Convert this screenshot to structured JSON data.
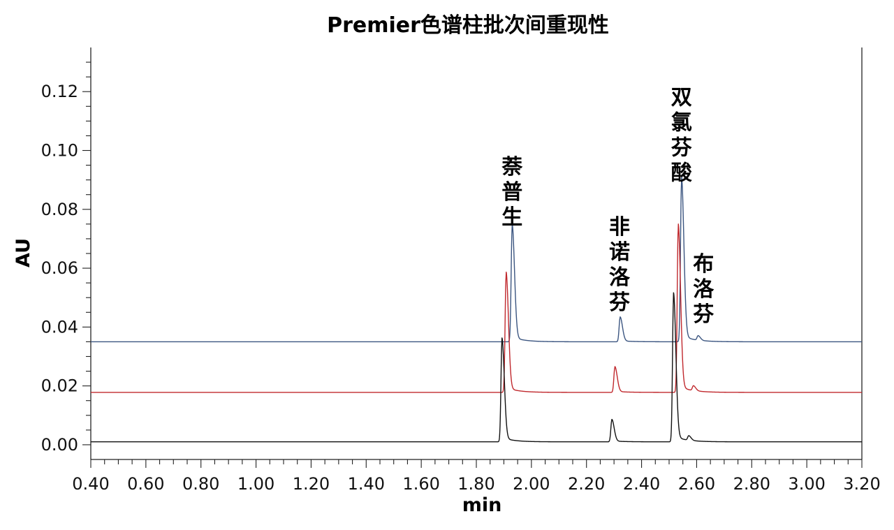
{
  "chart_data": {
    "type": "line",
    "title": "Premier色谱柱批次间重现性",
    "xlabel": "min",
    "ylabel": "AU",
    "xlim": [
      0.4,
      3.2
    ],
    "ylim": [
      -0.005,
      0.135
    ],
    "x_ticks": [
      "0.40",
      "0.60",
      "0.80",
      "1.00",
      "1.20",
      "1.40",
      "1.60",
      "1.80",
      "2.00",
      "2.20",
      "2.40",
      "2.60",
      "2.80",
      "3.00",
      "3.20"
    ],
    "y_ticks": [
      "0.00",
      "0.02",
      "0.04",
      "0.06",
      "0.08",
      "0.10",
      "0.12"
    ],
    "grid": false,
    "legend": "none",
    "peak_labels": [
      {
        "text": "萘普生",
        "x": 1.93,
        "y": 0.075
      },
      {
        "text": "非诺洛芬",
        "x": 2.32,
        "y": 0.046
      },
      {
        "text": "双氯芬酸",
        "x": 2.545,
        "y": 0.09
      },
      {
        "text": "布洛芬",
        "x": 2.625,
        "y": 0.042
      }
    ],
    "series": [
      {
        "color": "#3b5580",
        "baseline": 0.035,
        "peaks": [
          {
            "x": 1.93,
            "height": 0.0383
          },
          {
            "x": 2.322,
            "height": 0.0081
          },
          {
            "x": 2.545,
            "height": 0.0536
          },
          {
            "x": 2.605,
            "height": 0.0015
          }
        ]
      },
      {
        "color": "#c0282d",
        "baseline": 0.0178,
        "peaks": [
          {
            "x": 1.908,
            "height": 0.0392
          },
          {
            "x": 2.303,
            "height": 0.0084
          },
          {
            "x": 2.533,
            "height": 0.0549
          },
          {
            "x": 2.588,
            "height": 0.0016
          }
        ]
      },
      {
        "color": "#111111",
        "baseline": 0.001,
        "peaks": [
          {
            "x": 1.893,
            "height": 0.0338
          },
          {
            "x": 2.292,
            "height": 0.0073
          },
          {
            "x": 2.516,
            "height": 0.0485
          },
          {
            "x": 2.571,
            "height": 0.0015
          }
        ]
      }
    ]
  }
}
